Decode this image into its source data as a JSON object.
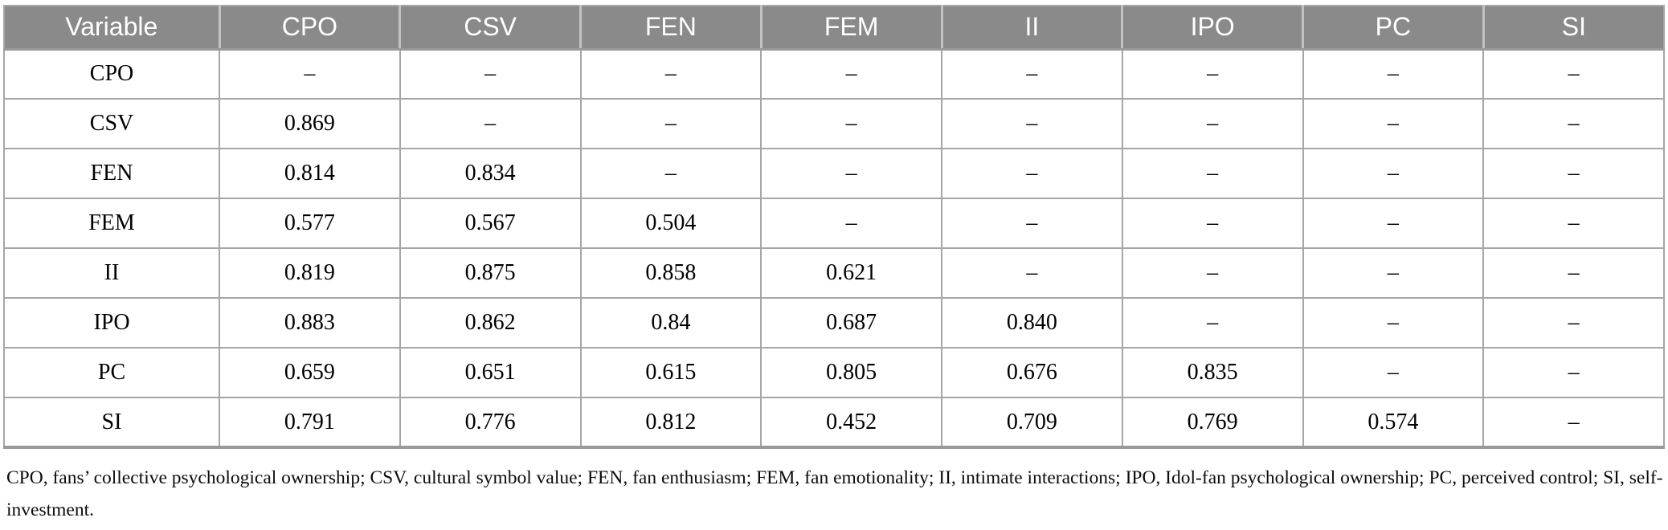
{
  "table": {
    "columns": [
      "Variable",
      "CPO",
      "CSV",
      "FEN",
      "FEM",
      "II",
      "IPO",
      "PC",
      "SI"
    ],
    "rows": [
      {
        "label": "CPO",
        "values": [
          "–",
          "–",
          "–",
          "–",
          "–",
          "–",
          "–",
          "–"
        ]
      },
      {
        "label": "CSV",
        "values": [
          "0.869",
          "–",
          "–",
          "–",
          "–",
          "–",
          "–",
          "–"
        ]
      },
      {
        "label": "FEN",
        "values": [
          "0.814",
          "0.834",
          "–",
          "–",
          "–",
          "–",
          "–",
          "–"
        ]
      },
      {
        "label": "FEM",
        "values": [
          "0.577",
          "0.567",
          "0.504",
          "–",
          "–",
          "–",
          "–",
          "–"
        ]
      },
      {
        "label": "II",
        "values": [
          "0.819",
          "0.875",
          "0.858",
          "0.621",
          "–",
          "–",
          "–",
          "–"
        ]
      },
      {
        "label": "IPO",
        "values": [
          "0.883",
          "0.862",
          "0.84",
          "0.687",
          "0.840",
          "–",
          "–",
          "–"
        ]
      },
      {
        "label": "PC",
        "values": [
          "0.659",
          "0.651",
          "0.615",
          "0.805",
          "0.676",
          "0.835",
          "–",
          "–"
        ]
      },
      {
        "label": "SI",
        "values": [
          "0.791",
          "0.776",
          "0.812",
          "0.452",
          "0.709",
          "0.769",
          "0.574",
          "–"
        ]
      }
    ]
  },
  "footnote": "CPO, fans’ collective psychological ownership; CSV, cultural symbol value; FEN, fan enthusiasm; FEM, fan emotionality; II, intimate interactions; IPO, Idol-fan psychological ownership; PC, perceived control; SI, self-investment.",
  "colors": {
    "header_bg": "#8a8a8a",
    "header_text": "#ffffff",
    "grid_line": "#a6a6a6",
    "body_text": "#000000"
  }
}
